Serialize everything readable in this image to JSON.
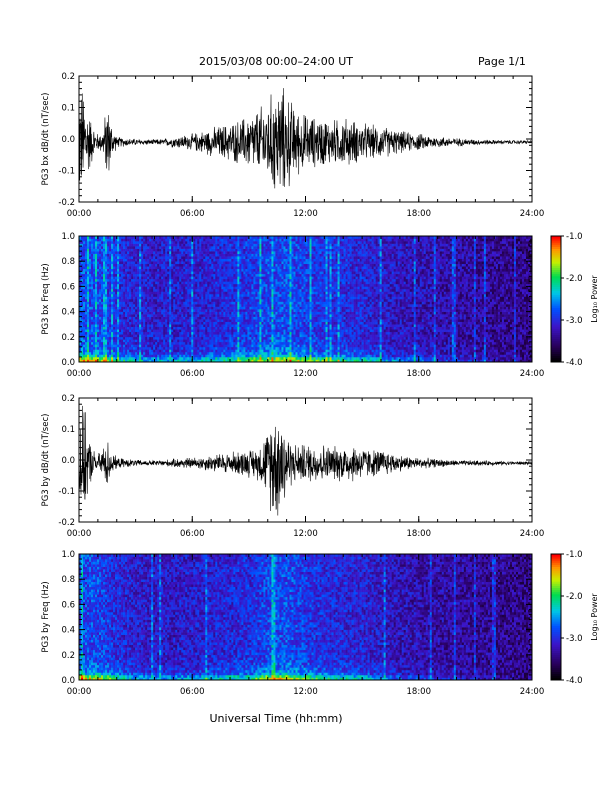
{
  "header": {
    "title": "2015/03/08  00:00–24:00 UT",
    "page": "Page 1/1"
  },
  "xlabel": "Universal Time (hh:mm)",
  "chart_data": [
    {
      "type": "line",
      "ylabel": "PG3 bx dB/dt (nT/sec)",
      "xlim": [
        0,
        24
      ],
      "ylim": [
        -0.2,
        0.2
      ],
      "x_ticks": [
        "00:00",
        "06:00",
        "12:00",
        "18:00",
        "24:00"
      ],
      "y_ticks": [
        "-0.2",
        "-0.1",
        "0.0",
        "0.1",
        "0.2"
      ],
      "series": [
        {
          "x": [
            0,
            0.25,
            0.5,
            0.75,
            1,
            1.25,
            1.5,
            1.75,
            2,
            2.5,
            3,
            3.5,
            4,
            4.5,
            5,
            5.5,
            6,
            6.5,
            7,
            7.5,
            8,
            8.5,
            9,
            9.5,
            10,
            10.25,
            10.5,
            10.75,
            11,
            11.25,
            11.5,
            12,
            12.5,
            13,
            13.5,
            14,
            14.5,
            15,
            15.5,
            16,
            16.5,
            17,
            17.5,
            18,
            19,
            20,
            21,
            22,
            23,
            24
          ],
          "amplitude": [
            0.2,
            0.2,
            0.12,
            0.06,
            0.03,
            0.04,
            0.15,
            0.06,
            0.02,
            0.015,
            0.012,
            0.01,
            0.01,
            0.012,
            0.02,
            0.025,
            0.03,
            0.04,
            0.05,
            0.06,
            0.07,
            0.08,
            0.1,
            0.12,
            0.15,
            0.18,
            0.2,
            0.2,
            0.18,
            0.15,
            0.12,
            0.1,
            0.09,
            0.09,
            0.08,
            0.09,
            0.08,
            0.07,
            0.06,
            0.06,
            0.05,
            0.04,
            0.035,
            0.03,
            0.02,
            0.015,
            0.01,
            0.008,
            0.007,
            0.006
          ]
        }
      ]
    },
    {
      "type": "heatmap",
      "ylabel": "PG3 bx Freq (Hz)",
      "xlim": [
        0,
        24
      ],
      "ylim": [
        0.0,
        1.0
      ],
      "x_ticks": [
        "00:00",
        "06:00",
        "12:00",
        "18:00",
        "24:00"
      ],
      "y_ticks": [
        "0.0",
        "0.2",
        "0.4",
        "0.6",
        "0.8",
        "1.0"
      ],
      "colorbar": {
        "label": "Log₁₀ Power",
        "range": [
          -4.0,
          -1.0
        ],
        "ticks": [
          "-1.0",
          "-2.0",
          "-3.0",
          "-4.0"
        ]
      },
      "activity": {
        "x": [
          0,
          1,
          2,
          3,
          4,
          5,
          6,
          7,
          8,
          9,
          10,
          11,
          12,
          13,
          14,
          15,
          16,
          17,
          18,
          19,
          20,
          21,
          22,
          23,
          24
        ],
        "level": [
          0.9,
          0.8,
          0.6,
          0.5,
          0.45,
          0.45,
          0.5,
          0.55,
          0.6,
          0.7,
          0.8,
          0.85,
          0.75,
          0.65,
          0.6,
          0.55,
          0.45,
          0.35,
          0.3,
          0.25,
          0.2,
          0.15,
          0.1,
          0.05,
          0.0
        ]
      }
    },
    {
      "type": "line",
      "ylabel": "PG3 by dB/dt (nT/sec)",
      "xlim": [
        0,
        24
      ],
      "ylim": [
        -0.2,
        0.2
      ],
      "x_ticks": [
        "00:00",
        "06:00",
        "12:00",
        "18:00",
        "24:00"
      ],
      "y_ticks": [
        "-0.2",
        "-0.1",
        "0.0",
        "0.1",
        "0.2"
      ],
      "series": [
        {
          "x": [
            0,
            0.25,
            0.5,
            0.75,
            1,
            1.25,
            1.5,
            1.75,
            2,
            2.5,
            3,
            3.5,
            4,
            4.5,
            5,
            5.5,
            6,
            6.5,
            7,
            7.5,
            8,
            8.5,
            9,
            9.5,
            10,
            10.25,
            10.5,
            10.75,
            11,
            11.25,
            11.5,
            12,
            12.5,
            13,
            13.5,
            14,
            14.5,
            15,
            15.5,
            16,
            16.5,
            17,
            17.5,
            18,
            19,
            20,
            21,
            22,
            23,
            24
          ],
          "amplitude": [
            0.2,
            0.2,
            0.1,
            0.05,
            0.03,
            0.06,
            0.09,
            0.04,
            0.02,
            0.015,
            0.012,
            0.01,
            0.01,
            0.012,
            0.015,
            0.02,
            0.02,
            0.025,
            0.03,
            0.035,
            0.04,
            0.045,
            0.05,
            0.06,
            0.12,
            0.2,
            0.2,
            0.2,
            0.12,
            0.08,
            0.07,
            0.07,
            0.07,
            0.07,
            0.06,
            0.07,
            0.07,
            0.06,
            0.05,
            0.05,
            0.04,
            0.03,
            0.025,
            0.02,
            0.015,
            0.01,
            0.01,
            0.008,
            0.007,
            0.006
          ]
        }
      ]
    },
    {
      "type": "heatmap",
      "ylabel": "PG3 by Freq (Hz)",
      "xlim": [
        0,
        24
      ],
      "ylim": [
        0.0,
        1.0
      ],
      "x_ticks": [
        "00:00",
        "06:00",
        "12:00",
        "18:00",
        "24:00"
      ],
      "y_ticks": [
        "0.0",
        "0.2",
        "0.4",
        "0.6",
        "0.8",
        "1.0"
      ],
      "colorbar": {
        "label": "Log₁₀ Power",
        "range": [
          -4.0,
          -1.0
        ],
        "ticks": [
          "-1.0",
          "-2.0",
          "-3.0",
          "-4.0"
        ]
      },
      "activity": {
        "x": [
          0,
          1,
          2,
          3,
          4,
          5,
          6,
          7,
          8,
          9,
          10,
          11,
          12,
          13,
          14,
          15,
          16,
          17,
          18,
          19,
          20,
          21,
          22,
          23,
          24
        ],
        "level": [
          0.85,
          0.8,
          0.6,
          0.45,
          0.4,
          0.4,
          0.45,
          0.5,
          0.55,
          0.6,
          0.8,
          0.85,
          0.7,
          0.6,
          0.55,
          0.5,
          0.4,
          0.3,
          0.25,
          0.2,
          0.15,
          0.1,
          0.08,
          0.04,
          0.0
        ]
      }
    }
  ]
}
